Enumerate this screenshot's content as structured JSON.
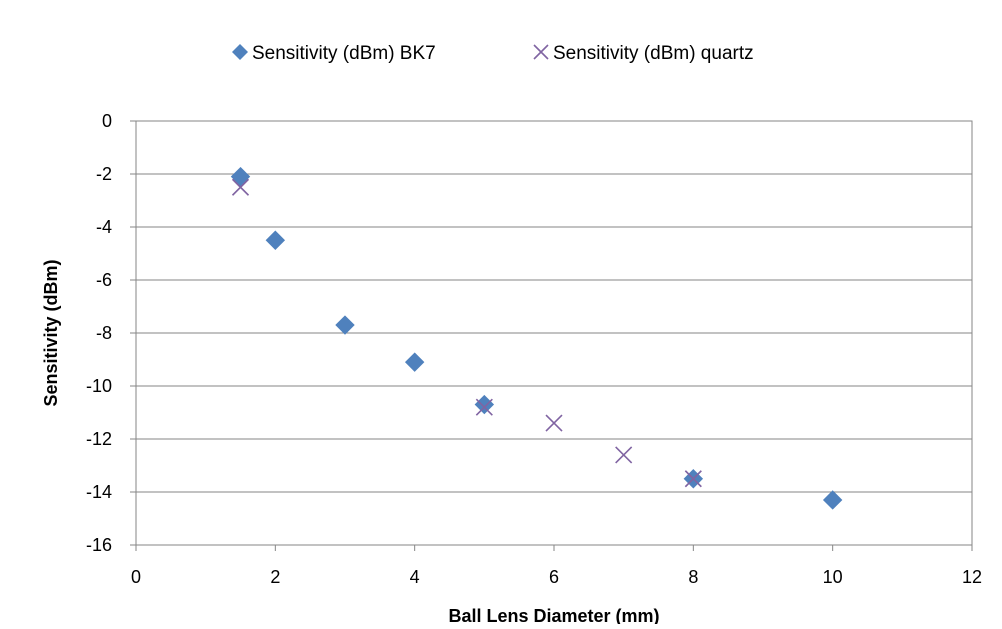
{
  "chart_data": {
    "type": "scatter",
    "title": "",
    "xlabel": "Ball Lens Diameter (mm)",
    "ylabel": "Sensitivity (dBm)",
    "xlim": [
      0,
      12
    ],
    "ylim": [
      -16,
      0
    ],
    "x_ticks": [
      0,
      2,
      4,
      6,
      8,
      10,
      12
    ],
    "y_ticks": [
      0,
      -2,
      -4,
      -6,
      -8,
      -10,
      -12,
      -14,
      -16
    ],
    "grid": "horizontal major gridlines",
    "legend_position": "top",
    "series": [
      {
        "name": "Sensitivity (dBm) BK7",
        "marker": "diamond",
        "color": "#4F81BD",
        "points": [
          {
            "x": 1.5,
            "y": -2.1
          },
          {
            "x": 2,
            "y": -4.5
          },
          {
            "x": 3,
            "y": -7.7
          },
          {
            "x": 4,
            "y": -9.1
          },
          {
            "x": 5,
            "y": -10.7
          },
          {
            "x": 8,
            "y": -13.5
          },
          {
            "x": 10,
            "y": -14.3
          }
        ]
      },
      {
        "name": "Sensitivity (dBm) quartz",
        "marker": "x",
        "color": "#8064A2",
        "points": [
          {
            "x": 1.5,
            "y": -2.5
          },
          {
            "x": 5,
            "y": -10.8
          },
          {
            "x": 6,
            "y": -11.4
          },
          {
            "x": 7,
            "y": -12.6
          },
          {
            "x": 8,
            "y": -13.5
          }
        ]
      }
    ]
  }
}
